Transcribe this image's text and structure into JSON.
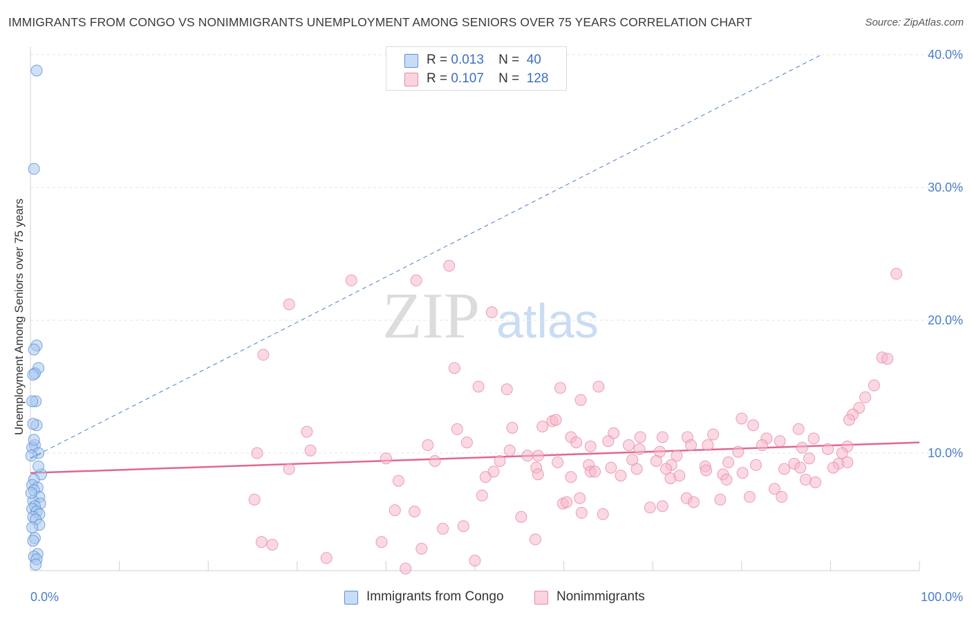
{
  "title": "IMMIGRANTS FROM CONGO VS NONIMMIGRANTS UNEMPLOYMENT AMONG SENIORS OVER 75 YEARS CORRELATION CHART",
  "source": "Source: ZipAtlas.com",
  "watermark": {
    "zip": "ZIP",
    "atlas": "atlas"
  },
  "legend": {
    "rows": [
      {
        "r_label": "R =",
        "r_value": "0.013",
        "n_label": "N =",
        "n_value": "40",
        "color": "#a9c8f0"
      },
      {
        "r_label": "R =",
        "r_value": "0.107",
        "n_label": "N =",
        "n_value": "128",
        "color": "#f7b8cb"
      }
    ]
  },
  "bottom_legend": {
    "series_a": "Immigrants from Congo",
    "series_b": "Nonimmigrants"
  },
  "colors": {
    "congo_fill": "#a9c8f0",
    "congo_stroke": "#5b8fd6",
    "congo_line": "#4a7cc9",
    "non_fill": "#f7b8cb",
    "non_stroke": "#e589a6",
    "non_line": "#e0668f",
    "axis_text": "#4a7cc9",
    "grid": "#e3e3e3"
  },
  "chart_data": {
    "type": "scatter",
    "title": "IMMIGRANTS FROM CONGO VS NONIMMIGRANTS UNEMPLOYMENT AMONG SENIORS OVER 75 YEARS CORRELATION CHART",
    "xlabel": "",
    "ylabel": "Unemployment Among Seniors over 75 years",
    "x_tick_labels": [
      "0.0%",
      "100.0%"
    ],
    "y_tick_labels": [
      "10.0%",
      "20.0%",
      "30.0%",
      "40.0%"
    ],
    "y_ticks": [
      10,
      20,
      30,
      40
    ],
    "xlim": [
      0,
      100
    ],
    "ylim": [
      0,
      42
    ],
    "grid": "horizontal dashed",
    "legend_position": "top-center",
    "series": [
      {
        "name": "Immigrants from Congo",
        "r": 0.013,
        "n": 40,
        "trend": {
          "x0": 0,
          "y0": 9.6,
          "x1": 89,
          "y1": 40.0,
          "style": "dashed"
        },
        "points": [
          [
            0.7,
            38.8
          ],
          [
            0.4,
            31.4
          ],
          [
            0.7,
            18.1
          ],
          [
            0.4,
            17.8
          ],
          [
            0.9,
            16.4
          ],
          [
            0.5,
            16.0
          ],
          [
            0.3,
            15.9
          ],
          [
            0.6,
            13.9
          ],
          [
            0.2,
            13.9
          ],
          [
            0.7,
            12.1
          ],
          [
            0.3,
            12.2
          ],
          [
            0.5,
            10.6
          ],
          [
            0.2,
            10.4
          ],
          [
            0.9,
            10.0
          ],
          [
            0.1,
            9.8
          ],
          [
            1.2,
            8.4
          ],
          [
            0.4,
            8.0
          ],
          [
            0.2,
            7.6
          ],
          [
            0.8,
            7.4
          ],
          [
            0.4,
            7.2
          ],
          [
            1.0,
            6.7
          ],
          [
            0.3,
            6.4
          ],
          [
            1.1,
            6.2
          ],
          [
            0.5,
            6.0
          ],
          [
            0.2,
            5.8
          ],
          [
            0.7,
            5.6
          ],
          [
            1.0,
            5.4
          ],
          [
            0.3,
            5.2
          ],
          [
            0.6,
            5.0
          ],
          [
            1.0,
            4.6
          ],
          [
            0.2,
            4.4
          ],
          [
            0.5,
            3.6
          ],
          [
            0.3,
            3.4
          ],
          [
            0.8,
            2.4
          ],
          [
            0.4,
            2.2
          ],
          [
            0.7,
            2.0
          ],
          [
            0.6,
            1.6
          ],
          [
            0.1,
            7.0
          ],
          [
            0.9,
            9.0
          ],
          [
            0.4,
            11.0
          ]
        ]
      },
      {
        "name": "Nonimmigrants",
        "r": 0.107,
        "n": 128,
        "trend": {
          "x0": 0,
          "y0": 8.5,
          "x1": 100,
          "y1": 10.8,
          "style": "solid"
        },
        "points": [
          [
            47.1,
            24.1
          ],
          [
            36.1,
            23.0
          ],
          [
            43.4,
            23.0
          ],
          [
            97.4,
            23.5
          ],
          [
            29.1,
            21.2
          ],
          [
            51.9,
            20.6
          ],
          [
            26.2,
            17.4
          ],
          [
            47.7,
            16.4
          ],
          [
            95.8,
            17.2
          ],
          [
            96.4,
            17.1
          ],
          [
            50.4,
            15.0
          ],
          [
            53.6,
            14.8
          ],
          [
            59.6,
            14.9
          ],
          [
            63.9,
            15.0
          ],
          [
            61.9,
            14.0
          ],
          [
            94.9,
            15.1
          ],
          [
            93.9,
            14.2
          ],
          [
            93.2,
            13.4
          ],
          [
            92.5,
            12.9
          ],
          [
            92.1,
            12.5
          ],
          [
            31.1,
            11.6
          ],
          [
            48.0,
            11.8
          ],
          [
            54.2,
            11.9
          ],
          [
            58.7,
            12.4
          ],
          [
            57.6,
            12.0
          ],
          [
            59.1,
            12.5
          ],
          [
            60.8,
            11.2
          ],
          [
            65.6,
            11.5
          ],
          [
            68.6,
            11.2
          ],
          [
            71.1,
            11.2
          ],
          [
            73.9,
            11.2
          ],
          [
            76.8,
            11.4
          ],
          [
            80.0,
            12.6
          ],
          [
            81.3,
            12.1
          ],
          [
            82.8,
            11.1
          ],
          [
            86.4,
            11.8
          ],
          [
            88.1,
            11.1
          ],
          [
            91.9,
            10.5
          ],
          [
            25.5,
            10.0
          ],
          [
            31.5,
            10.2
          ],
          [
            44.7,
            10.6
          ],
          [
            49.1,
            10.8
          ],
          [
            53.9,
            10.2
          ],
          [
            55.9,
            9.8
          ],
          [
            57.1,
            9.8
          ],
          [
            61.4,
            10.8
          ],
          [
            63.0,
            10.5
          ],
          [
            65.0,
            10.9
          ],
          [
            67.3,
            10.6
          ],
          [
            68.5,
            10.3
          ],
          [
            70.8,
            10.1
          ],
          [
            72.7,
            9.8
          ],
          [
            74.3,
            10.6
          ],
          [
            76.2,
            10.6
          ],
          [
            79.6,
            10.1
          ],
          [
            82.3,
            10.6
          ],
          [
            84.3,
            10.9
          ],
          [
            86.8,
            10.4
          ],
          [
            89.7,
            10.3
          ],
          [
            91.3,
            10.0
          ],
          [
            40.0,
            9.6
          ],
          [
            45.5,
            9.4
          ],
          [
            52.8,
            9.4
          ],
          [
            59.3,
            9.3
          ],
          [
            62.8,
            9.1
          ],
          [
            67.7,
            9.5
          ],
          [
            70.4,
            9.4
          ],
          [
            72.1,
            9.1
          ],
          [
            75.9,
            9.0
          ],
          [
            78.5,
            9.3
          ],
          [
            81.6,
            9.1
          ],
          [
            85.9,
            9.2
          ],
          [
            87.6,
            9.6
          ],
          [
            90.9,
            9.2
          ],
          [
            91.9,
            9.3
          ],
          [
            29.1,
            8.8
          ],
          [
            52.1,
            8.6
          ],
          [
            56.9,
            8.9
          ],
          [
            63.0,
            8.6
          ],
          [
            65.3,
            8.9
          ],
          [
            68.2,
            8.8
          ],
          [
            71.5,
            8.8
          ],
          [
            76.0,
            8.7
          ],
          [
            77.9,
            8.4
          ],
          [
            80.1,
            8.5
          ],
          [
            86.6,
            8.9
          ],
          [
            90.3,
            8.9
          ],
          [
            41.4,
            7.9
          ],
          [
            51.2,
            8.2
          ],
          [
            57.1,
            8.4
          ],
          [
            60.8,
            8.2
          ],
          [
            63.5,
            8.6
          ],
          [
            66.4,
            8.3
          ],
          [
            72.0,
            8.1
          ],
          [
            73.0,
            8.3
          ],
          [
            78.3,
            8.0
          ],
          [
            84.8,
            8.8
          ],
          [
            87.2,
            8.0
          ],
          [
            88.3,
            7.8
          ],
          [
            83.7,
            7.3
          ],
          [
            50.8,
            6.8
          ],
          [
            61.8,
            6.6
          ],
          [
            73.8,
            6.6
          ],
          [
            77.6,
            6.5
          ],
          [
            80.9,
            6.7
          ],
          [
            84.5,
            6.7
          ],
          [
            25.2,
            6.5
          ],
          [
            59.9,
            6.2
          ],
          [
            60.3,
            6.3
          ],
          [
            74.6,
            6.3
          ],
          [
            71.1,
            6.0
          ],
          [
            69.7,
            5.9
          ],
          [
            41.0,
            5.7
          ],
          [
            43.2,
            5.6
          ],
          [
            62.0,
            5.5
          ],
          [
            64.4,
            5.4
          ],
          [
            55.2,
            5.2
          ],
          [
            46.4,
            4.3
          ],
          [
            48.7,
            4.5
          ],
          [
            56.8,
            3.5
          ],
          [
            26.0,
            3.3
          ],
          [
            27.2,
            3.1
          ],
          [
            39.5,
            3.3
          ],
          [
            44.0,
            2.8
          ],
          [
            33.3,
            2.1
          ],
          [
            50.0,
            1.9
          ],
          [
            42.2,
            1.3
          ]
        ]
      }
    ]
  }
}
